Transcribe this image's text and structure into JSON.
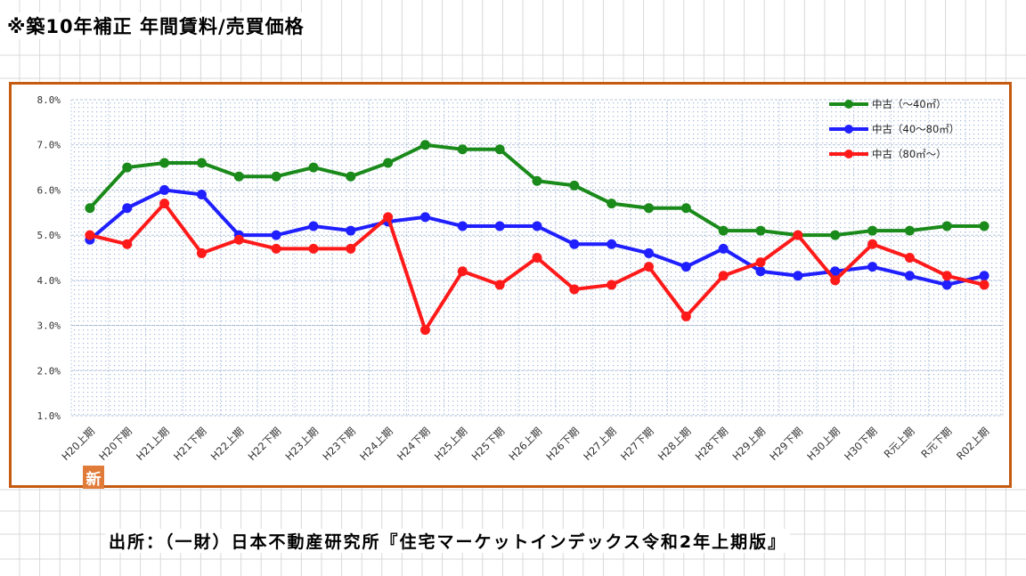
{
  "page": {
    "title": "※築10年補正 年間賃料/売買価格",
    "source": "出所：（一財）日本不動産研究所『住宅マーケットインデックス令和2年上期版』",
    "badge": "新"
  },
  "chart_data": {
    "type": "line",
    "title": "",
    "xlabel": "",
    "ylabel": "",
    "ylim": [
      1.0,
      8.0
    ],
    "yticks": [
      "8.0%",
      "7.0%",
      "6.0%",
      "5.0%",
      "4.0%",
      "3.0%",
      "2.0%",
      "1.0%"
    ],
    "grid": true,
    "legend_position": "top-right",
    "categories": [
      "H20上期",
      "H20下期",
      "H21上期",
      "H21下期",
      "H22上期",
      "H22下期",
      "H23上期",
      "H23下期",
      "H24上期",
      "H24下期",
      "H25上期",
      "H25下期",
      "H26上期",
      "H26下期",
      "H27上期",
      "H27下期",
      "H28上期",
      "H28下期",
      "H29上期",
      "H29下期",
      "H30上期",
      "H30下期",
      "R元上期",
      "R元下期",
      "R02上期"
    ],
    "series": [
      {
        "name": "中古（～40㎡）",
        "color": "#1a8a1a",
        "values": [
          5.6,
          6.5,
          6.6,
          6.6,
          6.3,
          6.3,
          6.5,
          6.3,
          6.6,
          7.0,
          6.9,
          6.9,
          6.2,
          6.1,
          5.7,
          5.6,
          5.6,
          5.1,
          5.1,
          5.0,
          5.0,
          5.1,
          5.1,
          5.2,
          5.2
        ]
      },
      {
        "name": "中古（40～80㎡）",
        "color": "#1f1fff",
        "values": [
          4.9,
          5.6,
          6.0,
          5.9,
          5.0,
          5.0,
          5.2,
          5.1,
          5.3,
          5.4,
          5.2,
          5.2,
          5.2,
          4.8,
          4.8,
          4.6,
          4.3,
          4.7,
          4.2,
          4.1,
          4.2,
          4.3,
          4.1,
          3.9,
          4.1
        ]
      },
      {
        "name": "中古（80㎡～）",
        "color": "#ff1a1a",
        "values": [
          5.0,
          4.8,
          5.7,
          4.6,
          4.9,
          4.7,
          4.7,
          4.7,
          5.4,
          2.9,
          4.2,
          3.9,
          4.5,
          3.8,
          3.9,
          4.3,
          3.2,
          4.1,
          4.4,
          5.0,
          4.0,
          4.8,
          4.5,
          4.1,
          3.9
        ]
      }
    ]
  }
}
